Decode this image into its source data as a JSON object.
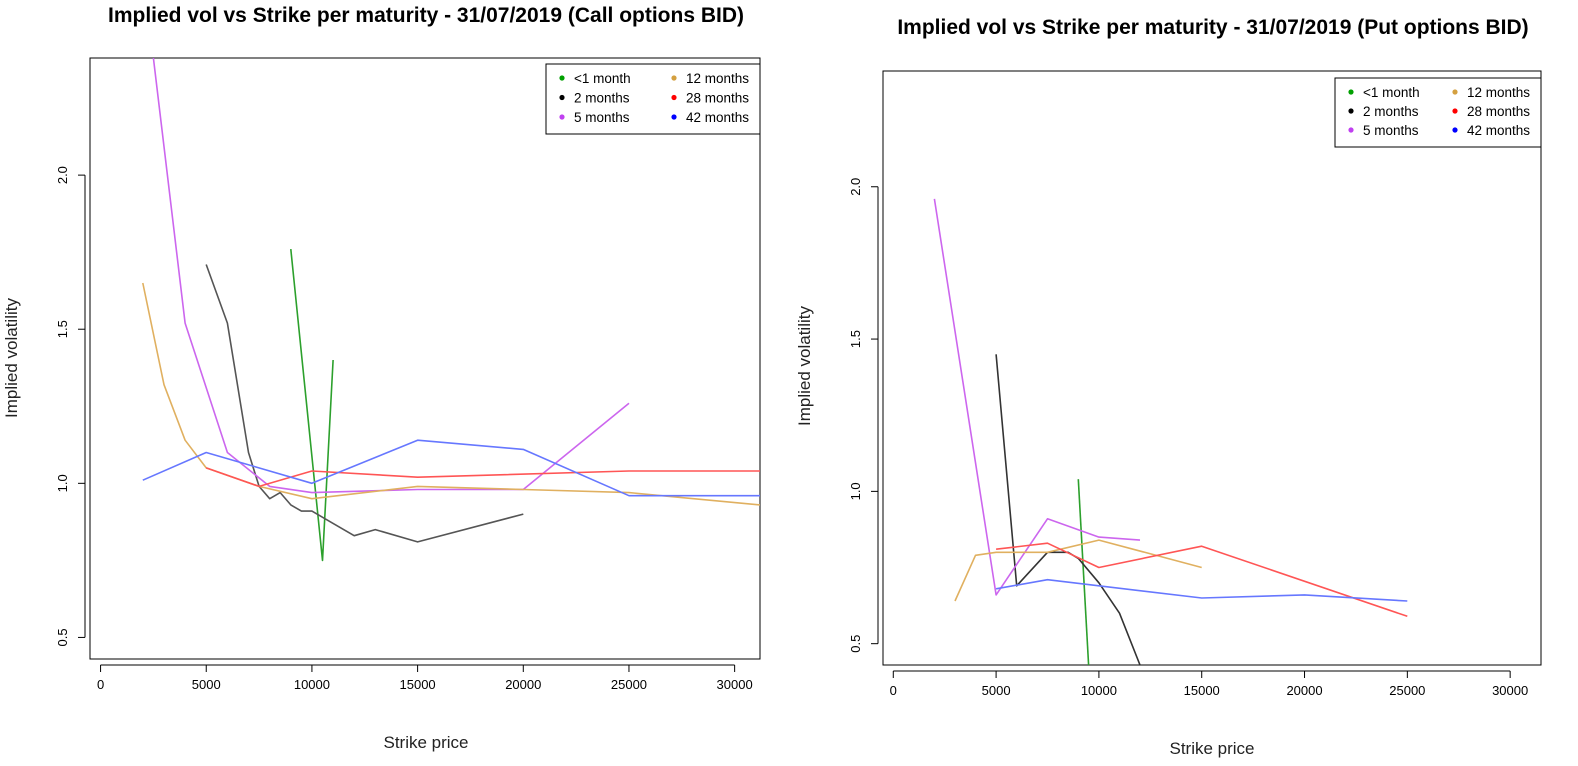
{
  "chart_data": [
    {
      "type": "line",
      "title": "Implied vol vs Strike per maturity - 31/07/2019 (Call options BID)",
      "xlabel": "Strike price",
      "ylabel": "Implied volatility",
      "xlim": [
        -500,
        31200
      ],
      "ylim": [
        0.43,
        2.38
      ],
      "xticks": [
        0,
        5000,
        10000,
        15000,
        20000,
        25000,
        30000
      ],
      "yticks": [
        0.5,
        1.0,
        1.5,
        2.0
      ],
      "ytick_labels": [
        "0.5",
        "1.0",
        "1.5",
        "2.0"
      ],
      "legend_placement": "top-right",
      "series": [
        {
          "name": "<1 month",
          "color": "#2ca02c",
          "dot_color": "#00a000",
          "x": [
            9000,
            10500,
            11000
          ],
          "y": [
            1.76,
            0.75,
            1.4
          ]
        },
        {
          "name": "2 months",
          "color": "#555555",
          "dot_color": "#000000",
          "x": [
            5000,
            6000,
            7000,
            7500,
            8000,
            8500,
            9000,
            9500,
            10000,
            11000,
            12000,
            13000,
            15000,
            20000
          ],
          "y": [
            1.71,
            1.52,
            1.1,
            0.99,
            0.95,
            0.97,
            0.93,
            0.91,
            0.91,
            0.87,
            0.83,
            0.85,
            0.81,
            0.9
          ]
        },
        {
          "name": "5 months",
          "color": "#cc66ee",
          "dot_color": "#c040f0",
          "x": [
            2500,
            4000,
            6000,
            8000,
            10000,
            15000,
            20000,
            25000
          ],
          "y": [
            2.38,
            1.52,
            1.1,
            0.99,
            0.97,
            0.98,
            0.98,
            1.26
          ]
        },
        {
          "name": "12 months",
          "color": "#e0b060",
          "dot_color": "#d4a040",
          "x": [
            2000,
            3000,
            4000,
            5000,
            7500,
            10000,
            15000,
            20000,
            25000,
            31200
          ],
          "y": [
            1.65,
            1.32,
            1.14,
            1.05,
            0.99,
            0.95,
            0.99,
            0.98,
            0.97,
            0.93
          ]
        },
        {
          "name": "28 months",
          "color": "#ff5555",
          "dot_color": "#ff0000",
          "x": [
            5000,
            7500,
            10000,
            15000,
            25000,
            31200
          ],
          "y": [
            1.05,
            0.99,
            1.04,
            1.02,
            1.04,
            1.04
          ]
        },
        {
          "name": "42 months",
          "color": "#6677ff",
          "dot_color": "#0000ff",
          "x": [
            2000,
            5000,
            10000,
            15000,
            20000,
            25000,
            31200
          ],
          "y": [
            1.01,
            1.1,
            1.0,
            1.14,
            1.11,
            0.96,
            0.96
          ]
        }
      ]
    },
    {
      "type": "line",
      "title": "Implied vol vs Strike per maturity - 31/07/2019 (Put options BID)",
      "xlabel": "Strike price",
      "ylabel": "Implied volatility",
      "xlim": [
        -500,
        31500
      ],
      "ylim": [
        0.43,
        2.38
      ],
      "xticks": [
        0,
        5000,
        10000,
        15000,
        20000,
        25000,
        30000
      ],
      "yticks": [
        0.5,
        1.0,
        1.5,
        2.0
      ],
      "ytick_labels": [
        "0.5",
        "1.0",
        "1.5",
        "2.0"
      ],
      "legend_placement": "top-right",
      "series": [
        {
          "name": "<1 month",
          "color": "#2ca02c",
          "dot_color": "#00a000",
          "x": [
            9000,
            9500
          ],
          "y": [
            1.04,
            0.43
          ]
        },
        {
          "name": "2 months",
          "color": "#333333",
          "dot_color": "#000000",
          "x": [
            5000,
            6000,
            7500,
            8500,
            9000,
            10000,
            11000,
            12000
          ],
          "y": [
            1.45,
            0.69,
            0.8,
            0.8,
            0.78,
            0.7,
            0.6,
            0.43
          ]
        },
        {
          "name": "5 months",
          "color": "#cc66ee",
          "dot_color": "#c040f0",
          "x": [
            2000,
            5000,
            7500,
            10000,
            12000
          ],
          "y": [
            1.96,
            0.66,
            0.91,
            0.85,
            0.84
          ]
        },
        {
          "name": "12 months",
          "color": "#e0b060",
          "dot_color": "#d4a040",
          "x": [
            3000,
            4000,
            5000,
            7500,
            10000,
            15000
          ],
          "y": [
            0.64,
            0.79,
            0.8,
            0.8,
            0.84,
            0.75
          ]
        },
        {
          "name": "28 months",
          "color": "#ff5555",
          "dot_color": "#ff0000",
          "x": [
            5000,
            7500,
            10000,
            15000,
            25000
          ],
          "y": [
            0.81,
            0.83,
            0.75,
            0.82,
            0.59
          ]
        },
        {
          "name": "42 months",
          "color": "#6677ff",
          "dot_color": "#0000ff",
          "x": [
            5000,
            7500,
            15000,
            20000,
            25000
          ],
          "y": [
            0.68,
            0.71,
            0.65,
            0.66,
            0.64
          ]
        }
      ]
    }
  ]
}
